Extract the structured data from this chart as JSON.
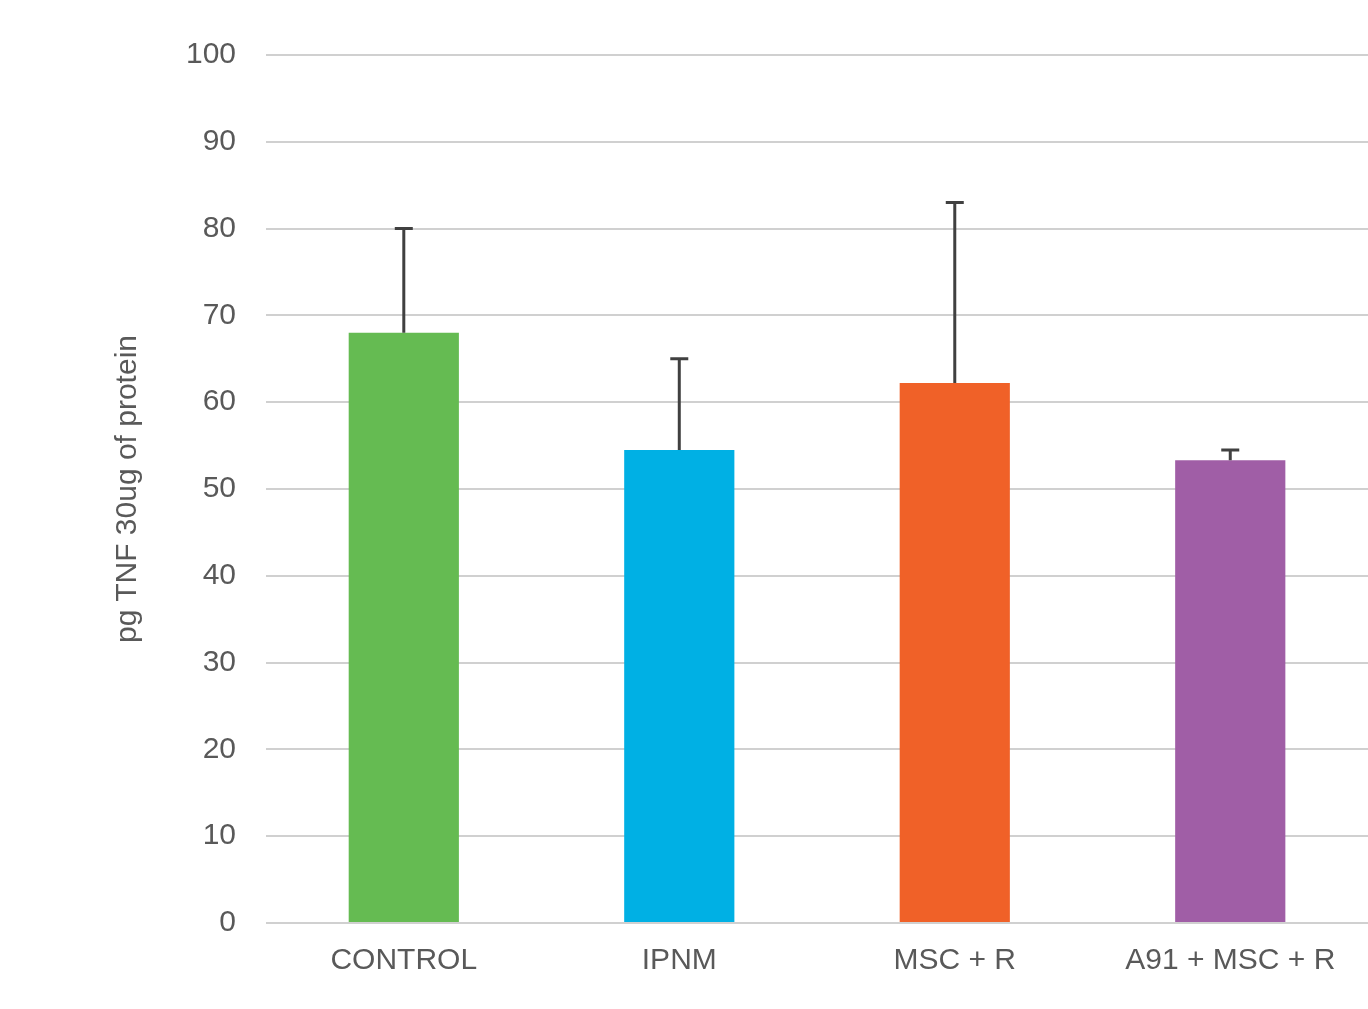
{
  "chart_data": {
    "type": "bar",
    "ylabel": "pg TNF 30ug of protein",
    "categories": [
      "CONTROL",
      "IPNM",
      "MSC + R",
      "A91 + MSC + R"
    ],
    "values": [
      68,
      54.5,
      62.2,
      53.3
    ],
    "colors": [
      "#65bb52",
      "#00b0e4",
      "#f06128",
      "#a05ea6"
    ],
    "errors": [
      [
        68,
        80
      ],
      [
        54.5,
        65
      ],
      [
        62.2,
        83
      ],
      [
        53.3,
        54.5
      ]
    ],
    "ylim": [
      0,
      100
    ],
    "yticks": [
      0,
      10,
      20,
      30,
      40,
      50,
      60,
      70,
      80,
      90,
      100
    ],
    "grid": "y",
    "legend": false
  }
}
